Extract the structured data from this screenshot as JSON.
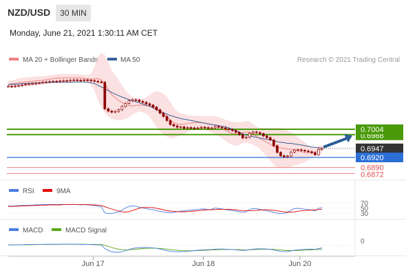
{
  "header": {
    "pair": "NZD/USD",
    "timeframe": "30 MIN",
    "timestamp": "Monday, June 21, 2021 1:30:11 AM CET"
  },
  "legend": {
    "ma20": "MA 20 + Bollinger Bands",
    "ma50": "MA 50",
    "source": "Research © 2021 Trading Central"
  },
  "colors": {
    "candle": "#8b0000",
    "ma20": "#f08080",
    "band_fill": "#f9d7d7",
    "ma50": "#3a5f98",
    "support_resistance": "#4a9a0a",
    "last_price": "#333333",
    "pivot": "#2b6fd6",
    "target": "#f08080",
    "arrow": "#2b5d98",
    "rsi": "#4b7be0",
    "rsi_ma": "#e00000",
    "macd": "#4b7be0",
    "macd_signal": "#5aa818"
  },
  "chart_data": [
    {
      "type": "candlestick",
      "title": "NZD/USD",
      "timeframe": "30 MIN",
      "x_tick_labels": [
        "Jun 17",
        "Jun 18",
        "Jun 20"
      ],
      "close": [
        0.7132,
        0.7131,
        0.7133,
        0.7134,
        0.7136,
        0.7138,
        0.7139,
        0.714,
        0.7141,
        0.7142,
        0.7144,
        0.7145,
        0.7146,
        0.7147,
        0.7146,
        0.7148,
        0.7149,
        0.7148,
        0.715,
        0.7151,
        0.715,
        0.7149,
        0.7151,
        0.715,
        0.7149,
        0.7147,
        0.7145,
        0.7144,
        0.7065,
        0.7058,
        0.7055,
        0.7057,
        0.7062,
        0.7072,
        0.7081,
        0.7089,
        0.7092,
        0.7091,
        0.7087,
        0.7084,
        0.708,
        0.7076,
        0.707,
        0.7062,
        0.7052,
        0.7042,
        0.703,
        0.7018,
        0.7014,
        0.701,
        0.7011,
        0.7007,
        0.7009,
        0.7008,
        0.7006,
        0.7008,
        0.701,
        0.7009,
        0.7007,
        0.7008,
        0.7012,
        0.701,
        0.7008,
        0.7005,
        0.7003,
        0.7,
        0.6995,
        0.6988,
        0.6978,
        0.698,
        0.6992,
        0.6996,
        0.6994,
        0.6991,
        0.6984,
        0.6979,
        0.6972,
        0.6955,
        0.6935,
        0.6925,
        0.6922,
        0.6924,
        0.6936,
        0.6942,
        0.6943,
        0.6941,
        0.6939,
        0.6937,
        0.6934,
        0.6928,
        0.6944,
        0.6947
      ],
      "bollinger_upper": [
        0.7148,
        0.715,
        0.7152,
        0.7155,
        0.7157,
        0.7158,
        0.7159,
        0.716,
        0.7161,
        0.7162,
        0.7162,
        0.7163,
        0.7164,
        0.7166,
        0.7168,
        0.7168,
        0.7169,
        0.7169,
        0.7169,
        0.7169,
        0.7168,
        0.7168,
        0.7166,
        0.7165,
        0.717,
        0.719,
        0.722,
        0.7232,
        0.7225,
        0.7205,
        0.718,
        0.7165,
        0.715,
        0.7135,
        0.712,
        0.7108,
        0.71,
        0.7097,
        0.7095,
        0.7095,
        0.7099,
        0.7106,
        0.7114,
        0.7118,
        0.7115,
        0.711,
        0.71,
        0.7085,
        0.7069,
        0.7057,
        0.7052,
        0.7049,
        0.7046,
        0.7045,
        0.7044,
        0.7044,
        0.7043,
        0.7043,
        0.7043,
        0.7043,
        0.7043,
        0.7041,
        0.7037,
        0.7032,
        0.7029,
        0.7026,
        0.7026,
        0.7024,
        0.7026,
        0.7029,
        0.7027,
        0.702,
        0.7012,
        0.7008,
        0.7008,
        0.7008,
        0.7008,
        0.7008,
        0.7009,
        0.7009,
        0.7005,
        0.7,
        0.6995,
        0.699,
        0.698,
        0.6973,
        0.6965,
        0.6957,
        0.695,
        0.6947,
        0.6955,
        0.6958
      ],
      "bollinger_lower": [
        0.7128,
        0.7129,
        0.7129,
        0.713,
        0.7131,
        0.7132,
        0.7133,
        0.7134,
        0.7135,
        0.7136,
        0.7138,
        0.714,
        0.7142,
        0.7145,
        0.7145,
        0.7145,
        0.7145,
        0.7146,
        0.7146,
        0.7146,
        0.7146,
        0.7146,
        0.7145,
        0.7143,
        0.7136,
        0.7118,
        0.709,
        0.707,
        0.7053,
        0.7042,
        0.7035,
        0.7032,
        0.703,
        0.7032,
        0.7035,
        0.704,
        0.7047,
        0.7053,
        0.7057,
        0.7055,
        0.705,
        0.7041,
        0.7026,
        0.701,
        0.6998,
        0.6988,
        0.6982,
        0.6978,
        0.6978,
        0.6982,
        0.6986,
        0.6991,
        0.6995,
        0.7,
        0.7003,
        0.7004,
        0.7004,
        0.7002,
        0.6998,
        0.6994,
        0.699,
        0.6984,
        0.6977,
        0.697,
        0.6962,
        0.6957,
        0.6955,
        0.6957,
        0.6962,
        0.6964,
        0.6962,
        0.6958,
        0.6953,
        0.6945,
        0.6934,
        0.6922,
        0.691,
        0.6898,
        0.689,
        0.6888,
        0.6889,
        0.689,
        0.6893,
        0.6896,
        0.6899,
        0.6902,
        0.6905,
        0.6911,
        0.6919,
        0.6925,
        0.6929,
        0.6932
      ],
      "ma50": [
        0.7137,
        0.7138,
        0.7138,
        0.7139,
        0.714,
        0.714,
        0.7141,
        0.7141,
        0.7142,
        0.7142,
        0.7143,
        0.7143,
        0.7143,
        0.7144,
        0.7144,
        0.7144,
        0.7144,
        0.7144,
        0.7144,
        0.7145,
        0.7145,
        0.7145,
        0.7145,
        0.7144,
        0.7143,
        0.714,
        0.7135,
        0.713,
        0.7125,
        0.7119,
        0.7114,
        0.7109,
        0.7104,
        0.71,
        0.7096,
        0.7092,
        0.7089,
        0.7086,
        0.7083,
        0.7079,
        0.7076,
        0.7072,
        0.7068,
        0.7063,
        0.7058,
        0.7053,
        0.7049,
        0.7045,
        0.7042,
        0.7039,
        0.7036,
        0.7034,
        0.7032,
        0.703,
        0.7028,
        0.7026,
        0.7024,
        0.7022,
        0.702,
        0.7018,
        0.7017,
        0.7015,
        0.7013,
        0.7011,
        0.7008,
        0.7004,
        0.7,
        0.6995,
        0.699,
        0.6987,
        0.6984,
        0.6982,
        0.698,
        0.6978,
        0.6976,
        0.6974,
        0.6972,
        0.697,
        0.6967,
        0.6965,
        0.6964,
        0.6962,
        0.6962,
        0.696,
        0.6959,
        0.6957,
        0.6955,
        0.6953,
        0.6951,
        0.695,
        0.6949,
        0.6947
      ],
      "levels": {
        "resistances": [
          {
            "label": "0.7004",
            "value": 0.7004
          },
          {
            "label": "0.6988",
            "value": 0.6988
          }
        ],
        "last_price": {
          "label": "0.6947",
          "value": 0.6947
        },
        "pivot": {
          "label": "0.6920",
          "value": 0.692
        },
        "targets": [
          {
            "label": "0.6890",
            "value": 0.689
          },
          {
            "label": "0.6872",
            "value": 0.6872
          }
        ]
      },
      "scenario_arrow": {
        "from": 0.6922,
        "to": 0.6985,
        "direction": "up"
      },
      "grid": false,
      "legend_position": "top-left"
    },
    {
      "type": "line",
      "panel": "RSI",
      "series": [
        {
          "name": "RSI",
          "values": [
            58,
            57,
            58,
            59,
            60,
            60,
            61,
            61,
            62,
            62,
            63,
            63,
            64,
            64,
            63,
            64,
            64,
            63,
            64,
            64,
            63,
            62,
            63,
            62,
            61,
            59,
            57,
            55,
            30,
            29,
            29,
            31,
            35,
            42,
            50,
            56,
            58,
            57,
            53,
            50,
            48,
            45,
            43,
            40,
            37,
            35,
            33,
            31,
            33,
            35,
            38,
            38,
            41,
            42,
            43,
            44,
            46,
            46,
            44,
            45,
            50,
            48,
            46,
            44,
            42,
            40,
            38,
            36,
            33,
            36,
            44,
            48,
            47,
            45,
            41,
            39,
            36,
            33,
            30,
            29,
            29,
            33,
            42,
            48,
            49,
            47,
            45,
            44,
            42,
            38,
            49,
            51
          ]
        },
        {
          "name": "9MA",
          "values": [
            56,
            56,
            57,
            57,
            58,
            58,
            59,
            59,
            60,
            60,
            61,
            61,
            62,
            62,
            62,
            62,
            63,
            63,
            63,
            63,
            63,
            63,
            63,
            63,
            62,
            62,
            61,
            60,
            55,
            50,
            46,
            42,
            38,
            35,
            34,
            36,
            40,
            45,
            49,
            52,
            52,
            52,
            51,
            49,
            46,
            43,
            40,
            38,
            37,
            36,
            35,
            35,
            36,
            37,
            38,
            39,
            41,
            42,
            43,
            43,
            44,
            45,
            45,
            45,
            45,
            44,
            43,
            41,
            40,
            39,
            39,
            40,
            41,
            42,
            43,
            43,
            42,
            41,
            39,
            37,
            35,
            34,
            34,
            35,
            37,
            39,
            40,
            41,
            42,
            43,
            44,
            45
          ]
        }
      ],
      "ytick_labels": [
        "70",
        "50",
        "30"
      ],
      "ylim": [
        0,
        100
      ]
    },
    {
      "type": "line",
      "panel": "MACD",
      "series": [
        {
          "name": "MACD",
          "values": [
            0.0004,
            0.0004,
            0.0005,
            0.0005,
            0.0005,
            0.0006,
            0.0006,
            0.0006,
            0.0007,
            0.0007,
            0.0007,
            0.0008,
            0.0008,
            0.0008,
            0.0008,
            0.0008,
            0.0008,
            0.0008,
            0.0008,
            0.0008,
            0.0008,
            0.0007,
            0.0007,
            0.0007,
            0.0006,
            0.0005,
            0.0004,
            0.0003,
            -0.002,
            -0.0032,
            -0.004,
            -0.0044,
            -0.0044,
            -0.004,
            -0.0033,
            -0.0026,
            -0.002,
            -0.0016,
            -0.0014,
            -0.0013,
            -0.0013,
            -0.0014,
            -0.0016,
            -0.0019,
            -0.0023,
            -0.0028,
            -0.0033,
            -0.0038,
            -0.004,
            -0.0041,
            -0.004,
            -0.0039,
            -0.0037,
            -0.0035,
            -0.0033,
            -0.0031,
            -0.0029,
            -0.0028,
            -0.0027,
            -0.0026,
            -0.0024,
            -0.0023,
            -0.0023,
            -0.0024,
            -0.0025,
            -0.0026,
            -0.0028,
            -0.003,
            -0.0032,
            -0.0031,
            -0.0027,
            -0.0024,
            -0.0022,
            -0.0021,
            -0.0022,
            -0.0023,
            -0.0025,
            -0.0029,
            -0.0034,
            -0.0038,
            -0.004,
            -0.0039,
            -0.0035,
            -0.0031,
            -0.0028,
            -0.0026,
            -0.0025,
            -0.0024,
            -0.0024,
            -0.0025,
            -0.002,
            -0.0016
          ]
        },
        {
          "name": "MACD Signal",
          "values": [
            0.0003,
            0.0003,
            0.0004,
            0.0004,
            0.0004,
            0.0005,
            0.0005,
            0.0005,
            0.0006,
            0.0006,
            0.0006,
            0.0007,
            0.0007,
            0.0007,
            0.0007,
            0.0007,
            0.0008,
            0.0008,
            0.0008,
            0.0008,
            0.0008,
            0.0008,
            0.0008,
            0.0007,
            0.0007,
            0.0007,
            0.0006,
            0.0006,
            0.0001,
            -0.0006,
            -0.0013,
            -0.0019,
            -0.0024,
            -0.0027,
            -0.0028,
            -0.0028,
            -0.0026,
            -0.0024,
            -0.0022,
            -0.002,
            -0.0019,
            -0.0018,
            -0.0018,
            -0.0018,
            -0.0019,
            -0.0021,
            -0.0023,
            -0.0026,
            -0.0029,
            -0.0031,
            -0.0033,
            -0.0034,
            -0.0034,
            -0.0034,
            -0.0034,
            -0.0033,
            -0.0032,
            -0.0031,
            -0.003,
            -0.0029,
            -0.0028,
            -0.0027,
            -0.0026,
            -0.0026,
            -0.0026,
            -0.0026,
            -0.0026,
            -0.0027,
            -0.0028,
            -0.0029,
            -0.0028,
            -0.0027,
            -0.0026,
            -0.0025,
            -0.0024,
            -0.0024,
            -0.0024,
            -0.0025,
            -0.0027,
            -0.0029,
            -0.0031,
            -0.0033,
            -0.0033,
            -0.0033,
            -0.0032,
            -0.0031,
            -0.003,
            -0.0029,
            -0.0028,
            -0.0027,
            -0.0026,
            -0.0024
          ]
        }
      ],
      "ytick_labels": [
        "0"
      ],
      "zero_line": 0
    }
  ]
}
